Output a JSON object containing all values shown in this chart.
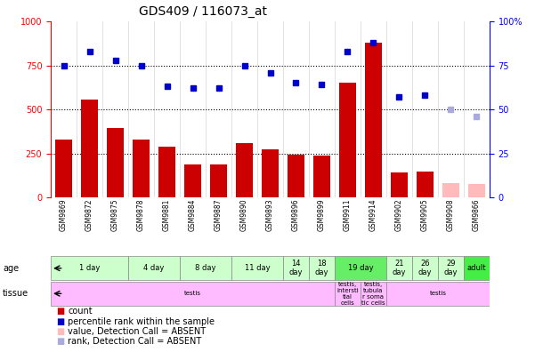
{
  "title": "GDS409 / 116073_at",
  "samples": [
    "GSM9869",
    "GSM9872",
    "GSM9875",
    "GSM9878",
    "GSM9881",
    "GSM9884",
    "GSM9887",
    "GSM9890",
    "GSM9893",
    "GSM9896",
    "GSM9899",
    "GSM9911",
    "GSM9914",
    "GSM9902",
    "GSM9905",
    "GSM9908",
    "GSM9866"
  ],
  "bar_values": [
    330,
    555,
    395,
    330,
    290,
    190,
    190,
    310,
    275,
    245,
    240,
    650,
    880,
    140,
    145,
    80,
    75
  ],
  "bar_absent": [
    false,
    false,
    false,
    false,
    false,
    false,
    false,
    false,
    false,
    false,
    false,
    false,
    false,
    false,
    false,
    true,
    true
  ],
  "bar_color_present": "#cc0000",
  "bar_color_absent": "#ffbbbb",
  "dot_values": [
    75,
    83,
    78,
    75,
    63,
    62,
    62,
    75,
    71,
    65,
    64,
    83,
    88,
    57,
    58,
    50,
    46
  ],
  "dot_absent": [
    false,
    false,
    false,
    false,
    false,
    false,
    false,
    false,
    false,
    false,
    false,
    false,
    false,
    false,
    false,
    true,
    true
  ],
  "dot_color_present": "#0000cc",
  "dot_color_absent": "#aaaadd",
  "ylim_left": [
    0,
    1000
  ],
  "ylim_right": [
    0,
    100
  ],
  "yticks_left": [
    0,
    250,
    500,
    750,
    1000
  ],
  "yticks_right": [
    0,
    25,
    50,
    75,
    100
  ],
  "age_groups": [
    {
      "label": "1 day",
      "start": 0,
      "end": 3,
      "color": "#ccffcc"
    },
    {
      "label": "4 day",
      "start": 3,
      "end": 5,
      "color": "#ccffcc"
    },
    {
      "label": "8 day",
      "start": 5,
      "end": 7,
      "color": "#ccffcc"
    },
    {
      "label": "11 day",
      "start": 7,
      "end": 9,
      "color": "#ccffcc"
    },
    {
      "label": "14\nday",
      "start": 9,
      "end": 10,
      "color": "#ccffcc"
    },
    {
      "label": "18\nday",
      "start": 10,
      "end": 11,
      "color": "#ccffcc"
    },
    {
      "label": "19 day",
      "start": 11,
      "end": 13,
      "color": "#66ee66"
    },
    {
      "label": "21\nday",
      "start": 13,
      "end": 14,
      "color": "#ccffcc"
    },
    {
      "label": "26\nday",
      "start": 14,
      "end": 15,
      "color": "#ccffcc"
    },
    {
      "label": "29\nday",
      "start": 15,
      "end": 16,
      "color": "#ccffcc"
    },
    {
      "label": "adult",
      "start": 16,
      "end": 17,
      "color": "#44ee44"
    }
  ],
  "tissue_groups": [
    {
      "label": "testis",
      "start": 0,
      "end": 11,
      "color": "#ffbbff"
    },
    {
      "label": "testis,\nintersti\ntial\ncells",
      "start": 11,
      "end": 12,
      "color": "#ffbbff"
    },
    {
      "label": "testis,\ntubula\nr soma\ntic cells",
      "start": 12,
      "end": 13,
      "color": "#ffbbff"
    },
    {
      "label": "testis",
      "start": 13,
      "end": 17,
      "color": "#ffbbff"
    }
  ],
  "bg_color": "#ffffff",
  "legend_items": [
    {
      "color": "#cc0000",
      "label": "count"
    },
    {
      "color": "#0000cc",
      "label": "percentile rank within the sample"
    },
    {
      "color": "#ffbbbb",
      "label": "value, Detection Call = ABSENT"
    },
    {
      "color": "#aaaadd",
      "label": "rank, Detection Call = ABSENT"
    }
  ]
}
